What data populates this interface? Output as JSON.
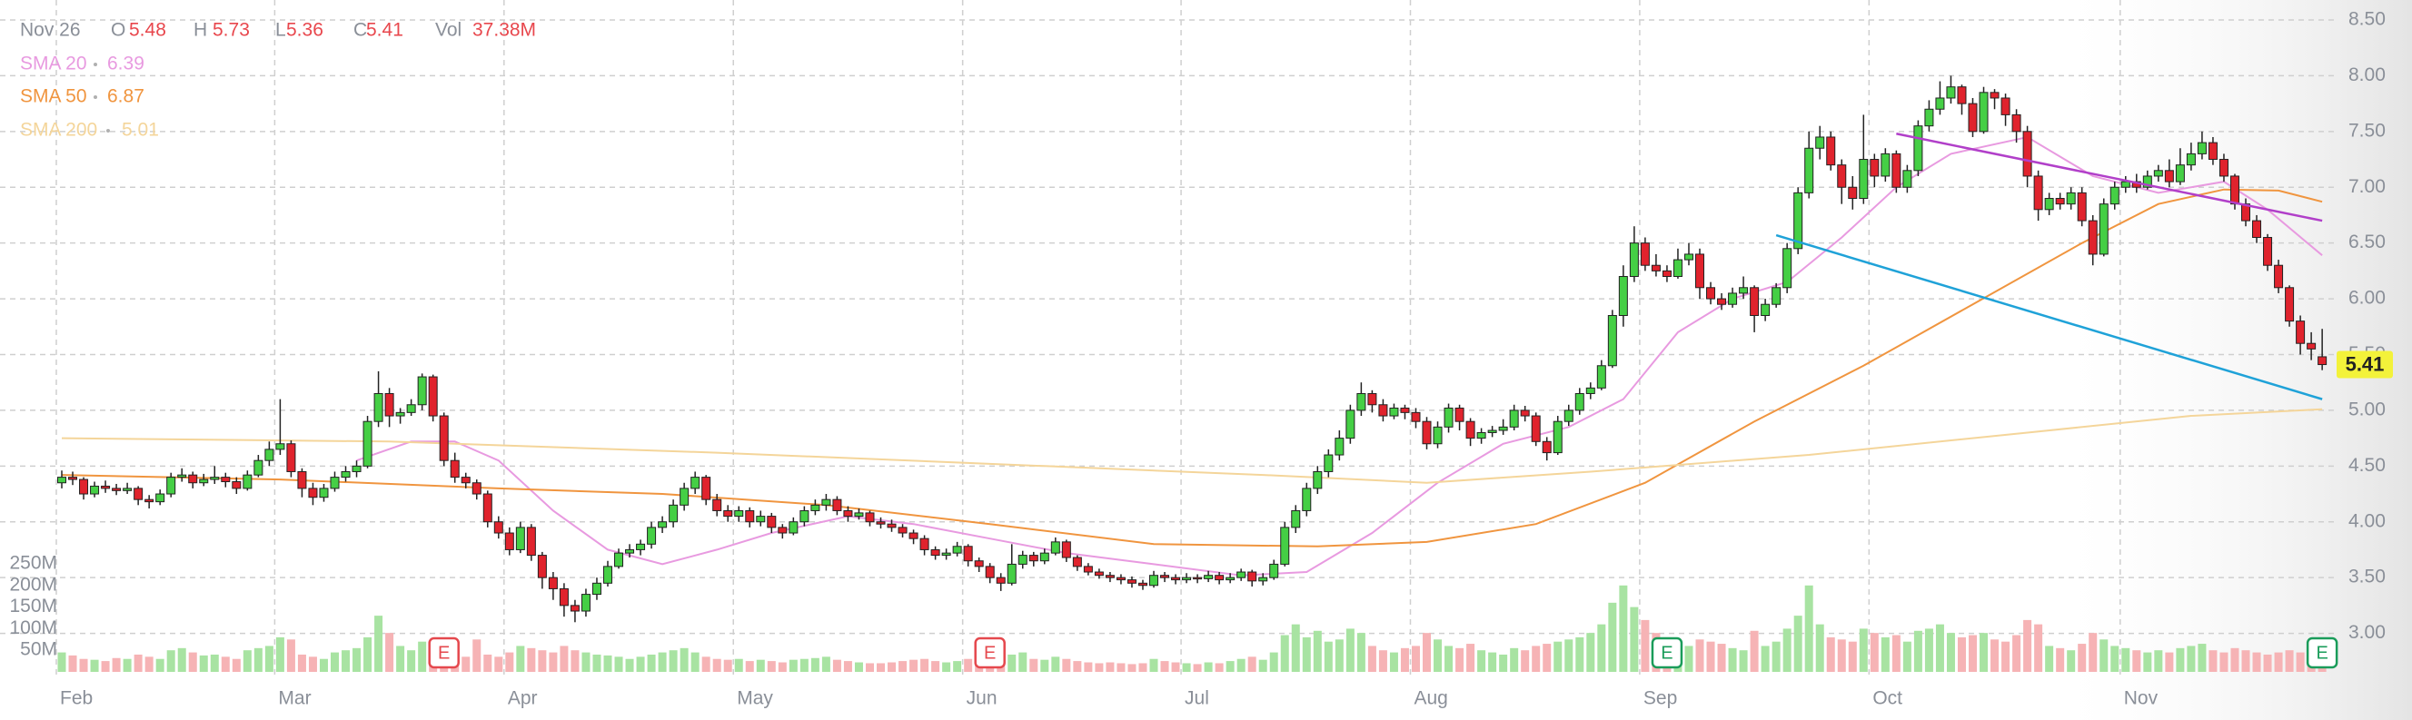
{
  "chart_data": {
    "type": "candlestick",
    "header": {
      "date": "Nov 26",
      "labels": [
        "O",
        "H",
        "L",
        "C",
        "Vol"
      ],
      "volume_label": "37.38M",
      "value_color": "#e8474d"
    },
    "categories": [
      "Feb",
      null,
      null,
      null,
      null,
      null,
      null,
      null,
      null,
      null,
      null,
      null,
      null,
      null,
      null,
      null,
      null,
      null,
      null,
      null,
      "Mar",
      null,
      null,
      null,
      null,
      null,
      null,
      null,
      null,
      null,
      null,
      null,
      null,
      null,
      null,
      null,
      null,
      null,
      null,
      null,
      null,
      "Apr",
      null,
      null,
      null,
      null,
      null,
      null,
      null,
      null,
      null,
      null,
      null,
      null,
      null,
      null,
      null,
      null,
      null,
      null,
      null,
      null,
      "May",
      null,
      null,
      null,
      null,
      null,
      null,
      null,
      null,
      null,
      null,
      null,
      null,
      null,
      null,
      null,
      null,
      null,
      null,
      null,
      null,
      "Jun",
      null,
      null,
      null,
      null,
      null,
      null,
      null,
      null,
      null,
      null,
      null,
      null,
      null,
      null,
      null,
      null,
      null,
      null,
      null,
      "Jul",
      null,
      null,
      null,
      null,
      null,
      null,
      null,
      null,
      null,
      null,
      null,
      null,
      null,
      null,
      null,
      null,
      null,
      null,
      null,
      null,
      "Aug",
      null,
      null,
      null,
      null,
      null,
      null,
      null,
      null,
      null,
      null,
      null,
      null,
      null,
      null,
      null,
      null,
      null,
      null,
      null,
      null,
      "Sep",
      null,
      null,
      null,
      null,
      null,
      null,
      null,
      null,
      null,
      null,
      null,
      null,
      null,
      null,
      null,
      null,
      null,
      null,
      null,
      null,
      "Oct",
      null,
      null,
      null,
      null,
      null,
      null,
      null,
      null,
      null,
      null,
      null,
      null,
      null,
      null,
      null,
      null,
      null,
      null,
      null,
      null,
      null,
      null,
      "Nov",
      null,
      null,
      null,
      null,
      null,
      null,
      null,
      null,
      null,
      null,
      null,
      null,
      null,
      null,
      null,
      null,
      null,
      null
    ],
    "open": [
      4.35,
      4.4,
      4.38,
      4.25,
      4.32,
      4.3,
      4.28,
      4.3,
      4.2,
      4.18,
      4.25,
      4.4,
      4.42,
      4.35,
      4.38,
      4.4,
      4.36,
      4.3,
      4.42,
      4.55,
      4.65,
      4.7,
      4.45,
      4.3,
      4.22,
      4.3,
      4.4,
      4.45,
      4.5,
      4.9,
      5.15,
      4.95,
      4.98,
      5.05,
      5.3,
      4.95,
      4.55,
      4.4,
      4.35,
      4.25,
      4.0,
      3.9,
      3.75,
      3.95,
      3.7,
      3.5,
      3.4,
      3.25,
      3.2,
      3.35,
      3.45,
      3.6,
      3.72,
      3.75,
      3.8,
      3.95,
      4.0,
      4.15,
      4.3,
      4.4,
      4.2,
      4.1,
      4.05,
      4.1,
      4.0,
      4.05,
      3.95,
      3.9,
      4.0,
      4.1,
      4.15,
      4.2,
      4.1,
      4.05,
      4.08,
      4.0,
      3.98,
      3.95,
      3.9,
      3.85,
      3.75,
      3.7,
      3.72,
      3.78,
      3.65,
      3.6,
      3.5,
      3.45,
      3.62,
      3.7,
      3.65,
      3.72,
      3.82,
      3.68,
      3.6,
      3.55,
      3.52,
      3.5,
      3.48,
      3.45,
      3.43,
      3.52,
      3.5,
      3.48,
      3.5,
      3.49,
      3.52,
      3.48,
      3.5,
      3.55,
      3.47,
      3.5,
      3.62,
      3.95,
      4.1,
      4.3,
      4.45,
      4.6,
      4.75,
      5.0,
      5.15,
      5.05,
      4.95,
      5.02,
      4.98,
      4.9,
      4.7,
      4.85,
      5.02,
      4.9,
      4.75,
      4.8,
      4.82,
      4.85,
      5.0,
      4.95,
      4.72,
      4.62,
      4.9,
      5.0,
      5.15,
      5.2,
      5.4,
      5.85,
      6.2,
      6.5,
      6.3,
      6.25,
      6.2,
      6.35,
      6.4,
      6.1,
      6.0,
      5.95,
      6.05,
      6.1,
      5.85,
      5.95,
      6.1,
      6.45,
      6.95,
      7.35,
      7.45,
      7.2,
      7.0,
      6.9,
      7.25,
      7.1,
      7.3,
      7.0,
      7.15,
      7.55,
      7.7,
      7.8,
      7.9,
      7.75,
      7.5,
      7.85,
      7.8,
      7.65,
      7.5,
      7.1,
      6.8,
      6.9,
      6.85,
      6.95,
      6.7,
      6.4,
      6.85,
      7.0,
      7.05,
      7.0,
      7.1,
      7.15,
      7.05,
      7.2,
      7.3,
      7.4,
      7.25,
      7.1,
      6.85,
      6.7,
      6.55,
      6.3,
      6.1,
      5.8,
      5.6,
      5.48
    ],
    "high": [
      4.46,
      4.45,
      4.4,
      4.36,
      4.37,
      4.34,
      4.35,
      4.32,
      4.24,
      4.29,
      4.44,
      4.48,
      4.45,
      4.43,
      4.5,
      4.44,
      4.4,
      4.46,
      4.6,
      4.72,
      5.1,
      4.73,
      4.48,
      4.35,
      4.34,
      4.45,
      4.5,
      4.55,
      4.95,
      5.35,
      5.2,
      5.02,
      5.1,
      5.33,
      5.32,
      4.98,
      4.62,
      4.44,
      4.38,
      4.28,
      4.05,
      3.95,
      4.0,
      3.98,
      3.73,
      3.55,
      3.45,
      3.3,
      3.4,
      3.5,
      3.65,
      3.76,
      3.8,
      3.84,
      4.0,
      4.05,
      4.2,
      4.35,
      4.45,
      4.42,
      4.25,
      4.15,
      4.14,
      4.13,
      4.1,
      4.08,
      3.98,
      4.04,
      4.14,
      4.2,
      4.25,
      4.23,
      4.14,
      4.12,
      4.1,
      4.04,
      4.02,
      3.98,
      3.93,
      3.88,
      3.78,
      3.76,
      3.82,
      3.8,
      3.68,
      3.63,
      3.54,
      3.8,
      3.74,
      3.73,
      3.76,
      3.86,
      3.84,
      3.7,
      3.63,
      3.58,
      3.55,
      3.53,
      3.51,
      3.48,
      3.56,
      3.55,
      3.53,
      3.54,
      3.53,
      3.56,
      3.55,
      3.54,
      3.58,
      3.57,
      3.54,
      3.66,
      4.0,
      4.15,
      4.35,
      4.5,
      4.65,
      4.82,
      5.05,
      5.25,
      5.18,
      5.1,
      5.06,
      5.05,
      5.02,
      4.94,
      4.9,
      5.06,
      5.05,
      4.93,
      4.84,
      4.86,
      4.92,
      5.05,
      5.04,
      4.98,
      4.76,
      4.95,
      5.05,
      5.2,
      5.25,
      5.45,
      5.9,
      6.3,
      6.65,
      6.55,
      6.4,
      6.3,
      6.45,
      6.5,
      6.45,
      6.15,
      6.05,
      6.1,
      6.2,
      6.12,
      6.0,
      6.14,
      6.5,
      7.0,
      7.5,
      7.55,
      7.5,
      7.25,
      7.1,
      7.65,
      7.3,
      7.35,
      7.33,
      7.2,
      7.6,
      7.78,
      7.95,
      8.0,
      7.92,
      7.8,
      7.9,
      7.88,
      7.84,
      7.7,
      7.55,
      7.15,
      6.95,
      6.95,
      7.0,
      7.0,
      6.75,
      6.9,
      7.05,
      7.1,
      7.12,
      7.15,
      7.2,
      7.25,
      7.35,
      7.4,
      7.5,
      7.45,
      7.3,
      7.12,
      6.9,
      6.75,
      6.58,
      6.35,
      6.12,
      5.85,
      5.7,
      5.73
    ],
    "low": [
      4.3,
      4.33,
      4.2,
      4.22,
      4.26,
      4.24,
      4.25,
      4.15,
      4.12,
      4.15,
      4.22,
      4.36,
      4.3,
      4.32,
      4.34,
      4.31,
      4.25,
      4.28,
      4.4,
      4.5,
      4.6,
      4.4,
      4.22,
      4.15,
      4.18,
      4.27,
      4.36,
      4.4,
      4.48,
      4.85,
      4.85,
      4.88,
      4.95,
      5.0,
      4.9,
      4.5,
      4.35,
      4.3,
      4.2,
      3.95,
      3.85,
      3.7,
      3.72,
      3.65,
      3.4,
      3.3,
      3.15,
      3.1,
      3.15,
      3.3,
      3.42,
      3.58,
      3.68,
      3.7,
      3.76,
      3.9,
      3.95,
      4.1,
      4.25,
      4.15,
      4.05,
      4.0,
      4.0,
      3.95,
      3.96,
      3.9,
      3.85,
      3.88,
      3.96,
      4.06,
      4.1,
      4.06,
      4.0,
      4.02,
      3.96,
      3.94,
      3.91,
      3.86,
      3.8,
      3.7,
      3.66,
      3.66,
      3.69,
      3.6,
      3.55,
      3.45,
      3.38,
      3.43,
      3.58,
      3.6,
      3.62,
      3.7,
      3.64,
      3.56,
      3.52,
      3.49,
      3.46,
      3.44,
      3.41,
      3.39,
      3.41,
      3.46,
      3.44,
      3.45,
      3.45,
      3.46,
      3.44,
      3.45,
      3.47,
      3.42,
      3.43,
      3.48,
      3.6,
      3.9,
      4.05,
      4.25,
      4.4,
      4.55,
      4.7,
      4.95,
      4.98,
      4.9,
      4.92,
      4.92,
      4.84,
      4.65,
      4.66,
      4.8,
      4.82,
      4.68,
      4.7,
      4.76,
      4.78,
      4.82,
      4.9,
      4.68,
      4.55,
      4.6,
      4.86,
      4.96,
      5.1,
      5.18,
      5.38,
      5.75,
      6.15,
      6.25,
      6.2,
      6.15,
      6.18,
      6.3,
      6.0,
      5.95,
      5.9,
      5.92,
      6.0,
      5.7,
      5.8,
      5.92,
      6.05,
      6.4,
      6.9,
      7.25,
      7.15,
      6.85,
      6.8,
      6.85,
      7.0,
      7.05,
      6.95,
      6.95,
      7.1,
      7.5,
      7.65,
      7.75,
      7.65,
      7.45,
      7.48,
      7.7,
      7.55,
      7.4,
      7.0,
      6.7,
      6.75,
      6.8,
      6.8,
      6.65,
      6.3,
      6.38,
      6.8,
      6.95,
      6.95,
      6.98,
      7.05,
      7.0,
      7.02,
      7.15,
      7.25,
      7.2,
      7.05,
      6.8,
      6.65,
      6.5,
      6.25,
      6.05,
      5.75,
      5.5,
      5.45,
      5.36
    ],
    "close": [
      4.4,
      4.38,
      4.25,
      4.32,
      4.3,
      4.28,
      4.3,
      4.2,
      4.18,
      4.25,
      4.4,
      4.42,
      4.35,
      4.38,
      4.4,
      4.36,
      4.3,
      4.42,
      4.55,
      4.65,
      4.7,
      4.45,
      4.3,
      4.22,
      4.3,
      4.4,
      4.45,
      4.5,
      4.9,
      5.15,
      4.95,
      4.98,
      5.05,
      5.3,
      4.95,
      4.55,
      4.4,
      4.35,
      4.25,
      4.0,
      3.9,
      3.75,
      3.95,
      3.7,
      3.5,
      3.4,
      3.25,
      3.2,
      3.35,
      3.45,
      3.6,
      3.72,
      3.75,
      3.8,
      3.95,
      4.0,
      4.15,
      4.3,
      4.4,
      4.2,
      4.1,
      4.05,
      4.1,
      4.0,
      4.05,
      3.95,
      3.9,
      4.0,
      4.1,
      4.15,
      4.2,
      4.1,
      4.05,
      4.08,
      4.0,
      3.98,
      3.95,
      3.9,
      3.85,
      3.75,
      3.7,
      3.72,
      3.78,
      3.65,
      3.6,
      3.5,
      3.45,
      3.62,
      3.7,
      3.65,
      3.72,
      3.82,
      3.68,
      3.6,
      3.55,
      3.52,
      3.5,
      3.48,
      3.45,
      3.43,
      3.52,
      3.5,
      3.48,
      3.5,
      3.49,
      3.52,
      3.48,
      3.5,
      3.55,
      3.47,
      3.5,
      3.62,
      3.95,
      4.1,
      4.3,
      4.45,
      4.6,
      4.75,
      5.0,
      5.15,
      5.05,
      4.95,
      5.02,
      4.98,
      4.9,
      4.7,
      4.85,
      5.02,
      4.9,
      4.75,
      4.8,
      4.82,
      4.85,
      5.0,
      4.95,
      4.72,
      4.62,
      4.9,
      5.0,
      5.15,
      5.2,
      5.4,
      5.85,
      6.2,
      6.5,
      6.3,
      6.25,
      6.2,
      6.35,
      6.4,
      6.1,
      6.0,
      5.95,
      6.05,
      6.1,
      5.85,
      5.95,
      6.1,
      6.45,
      6.95,
      7.35,
      7.45,
      7.2,
      7.0,
      6.9,
      7.25,
      7.1,
      7.3,
      7.0,
      7.15,
      7.55,
      7.7,
      7.8,
      7.9,
      7.75,
      7.5,
      7.85,
      7.8,
      7.65,
      7.5,
      7.1,
      6.8,
      6.9,
      6.85,
      6.95,
      6.7,
      6.4,
      6.85,
      7.0,
      7.05,
      7.0,
      7.1,
      7.15,
      7.05,
      7.2,
      7.3,
      7.4,
      7.25,
      7.1,
      6.85,
      6.7,
      6.55,
      6.3,
      6.1,
      5.8,
      5.6,
      5.55,
      5.41
    ],
    "volume": [
      45,
      38,
      30,
      28,
      25,
      32,
      30,
      40,
      35,
      30,
      50,
      55,
      45,
      38,
      40,
      35,
      30,
      50,
      55,
      60,
      80,
      75,
      40,
      35,
      30,
      45,
      50,
      55,
      80,
      130,
      90,
      60,
      50,
      70,
      65,
      55,
      40,
      35,
      75,
      40,
      35,
      45,
      60,
      55,
      50,
      45,
      60,
      50,
      45,
      40,
      38,
      35,
      30,
      35,
      40,
      45,
      50,
      55,
      45,
      35,
      30,
      28,
      30,
      25,
      28,
      25,
      22,
      28,
      30,
      32,
      35,
      28,
      25,
      22,
      20,
      20,
      22,
      25,
      28,
      30,
      25,
      22,
      25,
      30,
      28,
      45,
      35,
      40,
      45,
      30,
      28,
      35,
      30,
      25,
      22,
      20,
      22,
      20,
      18,
      20,
      30,
      25,
      22,
      20,
      18,
      22,
      20,
      25,
      30,
      35,
      28,
      45,
      85,
      110,
      80,
      95,
      70,
      75,
      100,
      90,
      60,
      50,
      45,
      55,
      60,
      90,
      75,
      60,
      55,
      65,
      50,
      45,
      40,
      55,
      50,
      60,
      65,
      70,
      75,
      80,
      90,
      110,
      160,
      200,
      150,
      120,
      90,
      80,
      70,
      60,
      75,
      70,
      65,
      55,
      50,
      95,
      60,
      70,
      100,
      130,
      200,
      110,
      80,
      75,
      70,
      100,
      90,
      80,
      85,
      70,
      95,
      100,
      110,
      90,
      80,
      85,
      90,
      75,
      70,
      85,
      120,
      110,
      60,
      55,
      50,
      65,
      90,
      75,
      60,
      55,
      50,
      45,
      50,
      45,
      55,
      60,
      65,
      50,
      45,
      55,
      50,
      45,
      40,
      45,
      50,
      45,
      40,
      37.38
    ],
    "up_color": "#45cf45",
    "down_color": "#e0232d",
    "volume_up_color": "#a8e3a2",
    "volume_down_color": "#f6b3b5",
    "ylim": [
      2.85,
      8.6
    ],
    "yticks": [
      {
        "value": 3,
        "label": "3.00"
      },
      {
        "value": 3.5,
        "label": "3.50"
      },
      {
        "value": 4,
        "label": "4.00"
      },
      {
        "value": 4.5,
        "label": "4.50"
      },
      {
        "value": 5,
        "label": "5.00"
      },
      {
        "value": 5.5,
        "label": "5.50"
      },
      {
        "value": 6,
        "label": "6.00"
      },
      {
        "value": 6.5,
        "label": "6.50"
      },
      {
        "value": 7,
        "label": "7.00"
      },
      {
        "value": 7.5,
        "label": "7.50"
      },
      {
        "value": 8,
        "label": "8.00"
      },
      {
        "value": 8.5,
        "label": "8.50"
      }
    ],
    "volume_ylim": [
      0,
      250
    ],
    "volume_yticks": [
      {
        "value": 50,
        "label": "50M"
      },
      {
        "value": 100,
        "label": "100M"
      },
      {
        "value": 150,
        "label": "150M"
      },
      {
        "value": 200,
        "label": "200M"
      },
      {
        "value": 250,
        "label": "250M"
      }
    ],
    "grid": true,
    "series": [
      {
        "name": "SMA 20",
        "color": "#e89ae0",
        "x": [
          27,
          32,
          36,
          40,
          45,
          50,
          55,
          60,
          65,
          72,
          78,
          85,
          92,
          100,
          108,
          114,
          120,
          126,
          132,
          138,
          143,
          148,
          153,
          158,
          163,
          168,
          173,
          180,
          186,
          192,
          198,
          202,
          207
        ],
        "values": [
          4.55,
          4.72,
          4.72,
          4.55,
          4.1,
          3.75,
          3.62,
          3.75,
          3.9,
          4.05,
          3.98,
          3.85,
          3.72,
          3.62,
          3.52,
          3.55,
          3.9,
          4.35,
          4.7,
          4.85,
          5.1,
          5.7,
          6.0,
          6.15,
          6.55,
          7.0,
          7.3,
          7.45,
          7.1,
          6.95,
          7.05,
          6.8,
          6.39
        ]
      },
      {
        "name": "SMA 50",
        "color": "#f0953f",
        "x": [
          0,
          20,
          40,
          55,
          70,
          85,
          100,
          115,
          125,
          135,
          145,
          155,
          165,
          175,
          185,
          192,
          198,
          203,
          207
        ],
        "values": [
          4.42,
          4.38,
          4.3,
          4.25,
          4.15,
          3.98,
          3.8,
          3.78,
          3.82,
          3.98,
          4.35,
          4.9,
          5.4,
          5.95,
          6.5,
          6.85,
          6.98,
          6.97,
          6.87
        ]
      },
      {
        "name": "SMA 200",
        "color": "#f4d59a",
        "x": [
          0,
          30,
          60,
          90,
          110,
          125,
          140,
          160,
          180,
          195,
          207
        ],
        "values": [
          4.75,
          4.72,
          4.62,
          4.5,
          4.42,
          4.35,
          4.45,
          4.6,
          4.8,
          4.95,
          5.01
        ]
      }
    ],
    "trendlines": [
      {
        "color": "#b13fc9",
        "x": [
          168,
          207
        ],
        "values": [
          7.48,
          6.7
        ]
      },
      {
        "color": "#1fa2d8",
        "x": [
          157,
          207
        ],
        "values": [
          6.57,
          5.1
        ]
      }
    ],
    "events": [
      {
        "label": "E",
        "x": 35,
        "color": "#e5484d"
      },
      {
        "label": "E",
        "x": 85,
        "color": "#e5484d"
      },
      {
        "label": "E",
        "x": 147,
        "color": "#1a9c5a"
      },
      {
        "label": "E",
        "x": 207,
        "color": "#1a9c5a"
      }
    ],
    "price_marker_color": "#f3f23a"
  }
}
